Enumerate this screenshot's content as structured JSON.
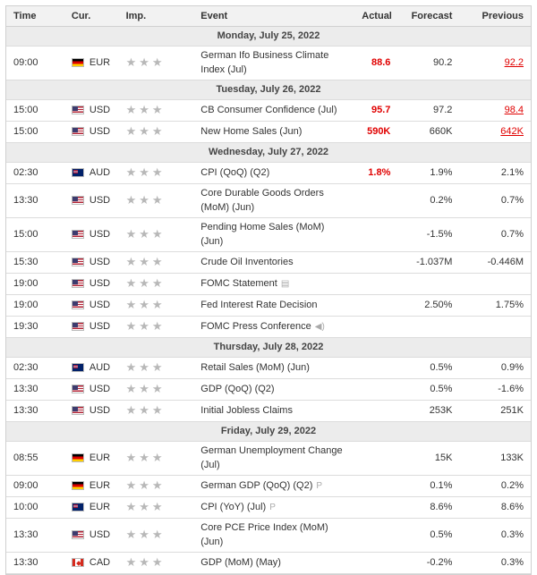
{
  "header": {
    "time": "Time",
    "currency": "Cur.",
    "importance": "Imp.",
    "event": "Event",
    "actual": "Actual",
    "forecast": "Forecast",
    "previous": "Previous"
  },
  "days": [
    {
      "date": "Monday, July 25, 2022",
      "events": [
        {
          "time": "09:00",
          "currency": "EUR",
          "flag": "flag-eur",
          "event": "German Ifo Business Climate Index (Jul)",
          "actual": "88.6",
          "forecast": "90.2",
          "previous": "92.2",
          "actual_red": true,
          "previous_red": true,
          "tall": true
        }
      ]
    },
    {
      "date": "Tuesday, July 26, 2022",
      "events": [
        {
          "time": "15:00",
          "currency": "USD",
          "flag": "flag-usd",
          "event": "CB Consumer Confidence (Jul)",
          "actual": "95.7",
          "forecast": "97.2",
          "previous": "98.4",
          "actual_red": true,
          "previous_red": true
        },
        {
          "time": "15:00",
          "currency": "USD",
          "flag": "flag-usd",
          "event": "New Home Sales (Jun)",
          "actual": "590K",
          "forecast": "660K",
          "previous": "642K",
          "actual_red": true,
          "previous_red": true
        }
      ]
    },
    {
      "date": "Wednesday, July 27, 2022",
      "events": [
        {
          "time": "02:30",
          "currency": "AUD",
          "flag": "flag-aud",
          "event": "CPI (QoQ) (Q2)",
          "actual": "1.8%",
          "forecast": "1.9%",
          "previous": "2.1%",
          "actual_red": true
        },
        {
          "time": "13:30",
          "currency": "USD",
          "flag": "flag-usd",
          "event": "Core Durable Goods Orders (MoM) (Jun)",
          "actual": "",
          "forecast": "0.2%",
          "previous": "0.7%",
          "tall": true
        },
        {
          "time": "15:00",
          "currency": "USD",
          "flag": "flag-usd",
          "event": "Pending Home Sales (MoM) (Jun)",
          "actual": "",
          "forecast": "-1.5%",
          "previous": "0.7%",
          "tall": true
        },
        {
          "time": "15:30",
          "currency": "USD",
          "flag": "flag-usd",
          "event": "Crude Oil Inventories",
          "actual": "",
          "forecast": "-1.037M",
          "previous": "-0.446M"
        },
        {
          "time": "19:00",
          "currency": "USD",
          "flag": "flag-usd",
          "event": "FOMC Statement",
          "actual": "",
          "forecast": "",
          "previous": "",
          "icon": "document-icon",
          "icon_glyph": "▤"
        },
        {
          "time": "19:00",
          "currency": "USD",
          "flag": "flag-usd",
          "event": "Fed Interest Rate Decision",
          "actual": "",
          "forecast": "2.50%",
          "previous": "1.75%"
        },
        {
          "time": "19:30",
          "currency": "USD",
          "flag": "flag-usd",
          "event": "FOMC Press Conference",
          "actual": "",
          "forecast": "",
          "previous": "",
          "icon": "speaker-icon",
          "icon_glyph": "◀)"
        }
      ]
    },
    {
      "date": "Thursday, July 28, 2022",
      "events": [
        {
          "time": "02:30",
          "currency": "AUD",
          "flag": "flag-aud",
          "event": "Retail Sales (MoM) (Jun)",
          "actual": "",
          "forecast": "0.5%",
          "previous": "0.9%"
        },
        {
          "time": "13:30",
          "currency": "USD",
          "flag": "flag-usd",
          "event": "GDP (QoQ) (Q2)",
          "actual": "",
          "forecast": "0.5%",
          "previous": "-1.6%"
        },
        {
          "time": "13:30",
          "currency": "USD",
          "flag": "flag-usd",
          "event": "Initial Jobless Claims",
          "actual": "",
          "forecast": "253K",
          "previous": "251K"
        }
      ]
    },
    {
      "date": "Friday, July 29, 2022",
      "events": [
        {
          "time": "08:55",
          "currency": "EUR",
          "flag": "flag-eur",
          "event": "German Unemployment Change (Jul)",
          "actual": "",
          "forecast": "15K",
          "previous": "133K",
          "tall": true
        },
        {
          "time": "09:00",
          "currency": "EUR",
          "flag": "flag-eur",
          "event": "German GDP (QoQ) (Q2)",
          "actual": "",
          "forecast": "0.1%",
          "previous": "0.2%",
          "icon": "preliminary-icon",
          "icon_glyph": "P"
        },
        {
          "time": "10:00",
          "currency": "EUR",
          "flag": "flag-aud",
          "event": "CPI (YoY) (Jul)",
          "actual": "",
          "forecast": "8.6%",
          "previous": "8.6%",
          "icon": "preliminary-icon",
          "icon_glyph": "P"
        },
        {
          "time": "13:30",
          "currency": "USD",
          "flag": "flag-usd",
          "event": "Core PCE Price Index (MoM) (Jun)",
          "actual": "",
          "forecast": "0.5%",
          "previous": "0.3%",
          "tall": true
        },
        {
          "time": "13:30",
          "currency": "CAD",
          "flag": "flag-cad",
          "event": "GDP (MoM) (May)",
          "actual": "",
          "forecast": "-0.2%",
          "previous": "0.3%"
        }
      ]
    }
  ],
  "importance_stars": "★★★"
}
